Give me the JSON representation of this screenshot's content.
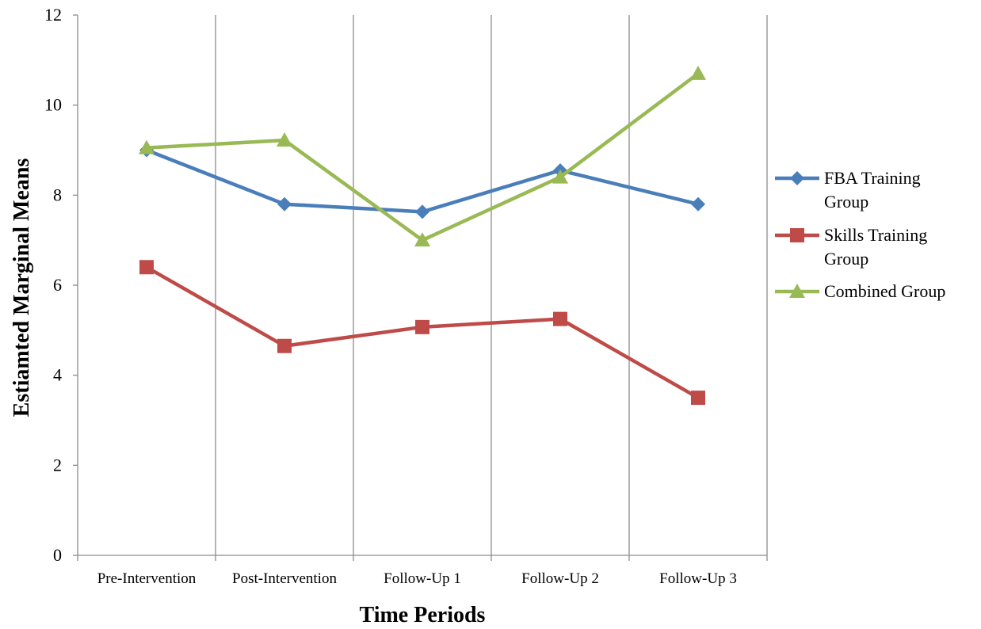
{
  "chart_data": {
    "type": "line",
    "title": "",
    "xlabel": "Time Periods",
    "ylabel": "Estiamted Marginal Means",
    "categories": [
      "Pre-Intervention",
      "Post-Intervention",
      "Follow-Up 1",
      "Follow-Up 2",
      "Follow-Up 3"
    ],
    "ylim": [
      0,
      12
    ],
    "yticks": [
      0,
      2,
      4,
      6,
      8,
      10,
      12
    ],
    "grid": "vertical",
    "legend_position": "right",
    "series": [
      {
        "name": "FBA Training Group",
        "legend_lines": [
          "FBA Training",
          "Group"
        ],
        "marker": "diamond",
        "color": "#4a7ebb",
        "values": [
          9.0,
          7.8,
          7.63,
          8.55,
          7.8
        ]
      },
      {
        "name": "Skills Training Group",
        "legend_lines": [
          "Skills Training",
          "Group"
        ],
        "marker": "square",
        "color": "#be4b48",
        "values": [
          6.4,
          4.65,
          5.07,
          5.25,
          3.5
        ]
      },
      {
        "name": "Combined Group",
        "legend_lines": [
          "Combined Group"
        ],
        "marker": "triangle",
        "color": "#98b954",
        "values": [
          9.05,
          9.22,
          7.0,
          8.4,
          10.7
        ]
      }
    ]
  }
}
